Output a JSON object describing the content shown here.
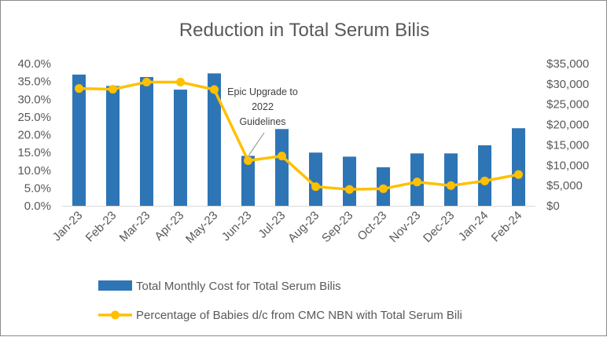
{
  "chart_data": {
    "type": "bar",
    "title": "Reduction in Total Serum Bilis",
    "categories": [
      "Jan-23",
      "Feb-23",
      "Mar-23",
      "Apr-23",
      "May-23",
      "Jun-23",
      "Jul-23",
      "Aug-23",
      "Sep-23",
      "Oct-23",
      "Nov-23",
      "Dec-23",
      "Jan-24",
      "Feb-24"
    ],
    "series": [
      {
        "name": "Total Monthly Cost for Total Serum Bilis",
        "type": "bar",
        "axis": "right",
        "color": "#2e75b6",
        "values": [
          32300,
          29500,
          31700,
          28600,
          32600,
          12300,
          18900,
          13100,
          12100,
          9500,
          12900,
          12900,
          14900,
          19100
        ]
      },
      {
        "name": "Percentage of Babies d/c from CMC NBN with Total Serum Bili",
        "type": "line",
        "axis": "left",
        "color": "#ffc000",
        "values": [
          0.33,
          0.328,
          0.348,
          0.348,
          0.327,
          0.127,
          0.14,
          0.054,
          0.046,
          0.048,
          0.067,
          0.057,
          0.07,
          0.088
        ]
      }
    ],
    "y_left": {
      "ticks": [
        "0.0%",
        "5.0%",
        "10.0%",
        "15.0%",
        "20.0%",
        "25.0%",
        "30.0%",
        "35.0%",
        "40.0%"
      ],
      "range": [
        0,
        0.4
      ]
    },
    "y_right": {
      "ticks": [
        "$0",
        "$5,000",
        "$10,000",
        "$15,000",
        "$20,000",
        "$25,000",
        "$30,000",
        "$35,000"
      ],
      "range": [
        0,
        35000
      ]
    },
    "annotation": {
      "lines": [
        "Epic Upgrade to",
        "2022",
        "Guidelines"
      ],
      "category": "Jun-23"
    },
    "legend_position": "bottom",
    "grid": false
  }
}
